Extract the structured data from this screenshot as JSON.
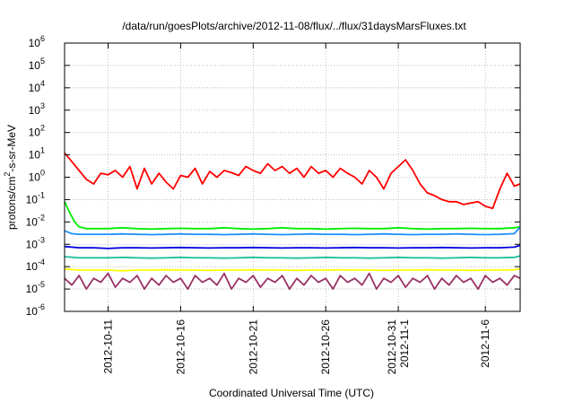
{
  "chart_data": {
    "type": "line",
    "title": "/data/run/goesPlots/archive/2012-11-08/flux/../flux/31daysMarsFluxes.txt",
    "xlabel": "Coordinated Universal Time (UTC)",
    "ylabel": "protons/cm²-s-sr-MeV",
    "ylabel_parts": {
      "pre": "protons/cm",
      "sup": "2",
      "post": "-s-sr-MeV"
    },
    "x_start": "2012-10-08",
    "xlim_days": [
      0,
      31.4
    ],
    "ylim": [
      1e-06,
      1000000.0
    ],
    "y_scale": "log",
    "grid": true,
    "x_ticks": [
      {
        "day": 3,
        "lines": [
          "2012-10-11"
        ]
      },
      {
        "day": 8,
        "lines": [
          "2012-10-16"
        ]
      },
      {
        "day": 13,
        "lines": [
          "2012-10-21"
        ]
      },
      {
        "day": 18,
        "lines": [
          "2012-10-26"
        ]
      },
      {
        "day": 23,
        "lines": [
          "2012-10-31",
          "2012-11-1"
        ]
      },
      {
        "day": 29,
        "lines": [
          "2012-11-6"
        ]
      }
    ],
    "y_ticks": [
      {
        "value": 1e-06,
        "base": "10",
        "exp": "-6"
      },
      {
        "value": 1e-05,
        "base": "10",
        "exp": "-5"
      },
      {
        "value": 0.0001,
        "base": "10",
        "exp": "-4"
      },
      {
        "value": 0.001,
        "base": "10",
        "exp": "-3"
      },
      {
        "value": 0.01,
        "base": "10",
        "exp": "-2"
      },
      {
        "value": 0.1,
        "base": "10",
        "exp": "-1"
      },
      {
        "value": 1,
        "base": "10",
        "exp": "0"
      },
      {
        "value": 10,
        "base": "10",
        "exp": "1"
      },
      {
        "value": 100,
        "base": "10",
        "exp": "2"
      },
      {
        "value": 1000.0,
        "base": "10",
        "exp": "3"
      },
      {
        "value": 10000.0,
        "base": "10",
        "exp": "4"
      },
      {
        "value": 100000.0,
        "base": "10",
        "exp": "5"
      },
      {
        "value": 1000000.0,
        "base": "10",
        "exp": "6"
      }
    ],
    "series": [
      {
        "color": "#ff0000",
        "x": [
          0,
          0.5,
          1,
          1.5,
          2,
          2.5,
          3,
          3.5,
          4,
          4.5,
          5,
          5.5,
          6,
          6.5,
          7,
          7.5,
          8,
          8.5,
          9,
          9.5,
          10,
          10.5,
          11,
          11.5,
          12,
          12.5,
          13,
          13.5,
          14,
          14.5,
          15,
          15.5,
          16,
          16.5,
          17,
          17.5,
          18,
          18.5,
          19,
          19.5,
          20,
          20.5,
          21,
          21.5,
          22,
          22.5,
          23,
          23.5,
          24,
          24.5,
          25,
          25.5,
          26,
          26.5,
          27,
          27.5,
          28,
          28.5,
          29,
          29.5,
          30,
          30.5,
          31,
          31.4
        ],
        "values": [
          12,
          5,
          2,
          0.8,
          0.5,
          1.5,
          1.3,
          2,
          1,
          3,
          0.3,
          2.5,
          0.5,
          1.5,
          0.6,
          0.3,
          1.2,
          1,
          2.5,
          0.5,
          1.8,
          1,
          2,
          1.6,
          1.2,
          3,
          2,
          1.5,
          4,
          2,
          3,
          1.5,
          2.5,
          1,
          3,
          1.5,
          2,
          1,
          2.5,
          1.5,
          1,
          0.5,
          2,
          1,
          0.3,
          1.5,
          3,
          6,
          2,
          0.5,
          0.2,
          0.15,
          0.1,
          0.08,
          0.08,
          0.06,
          0.07,
          0.08,
          0.05,
          0.04,
          0.3,
          1.5,
          0.4,
          0.5
        ]
      },
      {
        "color": "#00ee00",
        "x": [
          0,
          0.3,
          0.7,
          1,
          1.5,
          2,
          3,
          4,
          5,
          6,
          7,
          8,
          9,
          10,
          11,
          12,
          13,
          14,
          15,
          16,
          17,
          18,
          19,
          20,
          21,
          22,
          23,
          24,
          25,
          26,
          27,
          28,
          29,
          30,
          31,
          31.4
        ],
        "values": [
          0.08,
          0.03,
          0.01,
          0.006,
          0.005,
          0.005,
          0.005,
          0.0055,
          0.005,
          0.0048,
          0.005,
          0.0052,
          0.005,
          0.005,
          0.0055,
          0.005,
          0.0048,
          0.005,
          0.0055,
          0.005,
          0.005,
          0.0048,
          0.005,
          0.0052,
          0.005,
          0.005,
          0.0055,
          0.005,
          0.0048,
          0.005,
          0.005,
          0.0052,
          0.005,
          0.005,
          0.0055,
          0.006
        ]
      },
      {
        "color": "#1e90ff",
        "x": [
          0,
          0.5,
          1,
          2,
          3,
          4,
          5,
          6,
          7,
          8,
          9,
          10,
          11,
          12,
          13,
          14,
          15,
          16,
          17,
          18,
          19,
          20,
          21,
          22,
          23,
          24,
          25,
          26,
          27,
          28,
          29,
          30,
          31,
          31.4
        ],
        "values": [
          0.004,
          0.003,
          0.0028,
          0.0028,
          0.0028,
          0.0029,
          0.0028,
          0.0027,
          0.0028,
          0.0029,
          0.0028,
          0.0028,
          0.0027,
          0.0028,
          0.0029,
          0.0028,
          0.0027,
          0.0028,
          0.0029,
          0.0028,
          0.0028,
          0.0027,
          0.0028,
          0.0029,
          0.0028,
          0.0027,
          0.0028,
          0.0028,
          0.0029,
          0.0028,
          0.0027,
          0.0028,
          0.003,
          0.006
        ]
      },
      {
        "color": "#0000dd",
        "x": [
          0,
          1,
          2,
          3,
          4,
          5,
          6,
          7,
          8,
          9,
          10,
          11,
          12,
          13,
          14,
          15,
          16,
          17,
          18,
          19,
          20,
          21,
          22,
          23,
          24,
          25,
          26,
          27,
          28,
          29,
          30,
          31,
          31.4
        ],
        "values": [
          0.0008,
          0.0007,
          0.0007,
          0.00065,
          0.0007,
          0.0007,
          0.00068,
          0.0007,
          0.00072,
          0.0007,
          0.00068,
          0.0007,
          0.0007,
          0.00072,
          0.0007,
          0.00068,
          0.0007,
          0.0007,
          0.00068,
          0.0007,
          0.00072,
          0.0007,
          0.0007,
          0.00068,
          0.0007,
          0.0007,
          0.00072,
          0.0007,
          0.00068,
          0.0007,
          0.0007,
          0.00075,
          0.0009
        ]
      },
      {
        "color": "#20c0a0",
        "x": [
          0,
          1,
          2,
          3,
          4,
          5,
          6,
          7,
          8,
          9,
          10,
          11,
          12,
          13,
          14,
          15,
          16,
          17,
          18,
          19,
          20,
          21,
          22,
          23,
          24,
          25,
          26,
          27,
          28,
          29,
          30,
          31,
          31.4
        ],
        "values": [
          0.00028,
          0.00025,
          0.00025,
          0.00025,
          0.00026,
          0.00025,
          0.00024,
          0.00025,
          0.00026,
          0.00025,
          0.00025,
          0.00024,
          0.00025,
          0.00026,
          0.00025,
          0.00025,
          0.00024,
          0.00025,
          0.00026,
          0.00025,
          0.00025,
          0.00024,
          0.00025,
          0.00026,
          0.00025,
          0.00025,
          0.00024,
          0.00025,
          0.00026,
          0.00025,
          0.00025,
          0.00026,
          0.0003
        ]
      },
      {
        "color": "#ffff00",
        "x": [
          0,
          1,
          2,
          3,
          4,
          5,
          6,
          7,
          8,
          9,
          10,
          11,
          12,
          13,
          14,
          15,
          16,
          17,
          18,
          19,
          20,
          21,
          22,
          23,
          24,
          25,
          26,
          27,
          28,
          29,
          30,
          31,
          31.4
        ],
        "values": [
          8e-05,
          7e-05,
          7e-05,
          7e-05,
          6.5e-05,
          7e-05,
          7e-05,
          7.2e-05,
          7e-05,
          7e-05,
          6.8e-05,
          7e-05,
          7e-05,
          7.2e-05,
          7e-05,
          7e-05,
          6.8e-05,
          7e-05,
          7e-05,
          7.2e-05,
          7e-05,
          7e-05,
          6.8e-05,
          7e-05,
          7e-05,
          7.2e-05,
          7e-05,
          7e-05,
          6.8e-05,
          7e-05,
          7e-05,
          7.2e-05,
          8e-05
        ]
      },
      {
        "color": "#993366",
        "x": [
          0,
          0.5,
          1,
          1.5,
          2,
          2.5,
          3,
          3.5,
          4,
          4.5,
          5,
          5.5,
          6,
          6.5,
          7,
          7.5,
          8,
          8.5,
          9,
          9.5,
          10,
          10.5,
          11,
          11.5,
          12,
          12.5,
          13,
          13.5,
          14,
          14.5,
          15,
          15.5,
          16,
          16.5,
          17,
          17.5,
          18,
          18.5,
          19,
          19.5,
          20,
          20.5,
          21,
          21.5,
          22,
          22.5,
          23,
          23.5,
          24,
          24.5,
          25,
          25.5,
          26,
          26.5,
          27,
          27.5,
          28,
          28.5,
          29,
          29.5,
          30,
          30.5,
          31,
          31.4
        ],
        "values": [
          3e-05,
          1.5e-05,
          4e-05,
          1e-05,
          3e-05,
          2e-05,
          5e-05,
          1.2e-05,
          3e-05,
          2e-05,
          4e-05,
          1e-05,
          3e-05,
          1.5e-05,
          4e-05,
          2e-05,
          3e-05,
          1e-05,
          4e-05,
          2e-05,
          3e-05,
          1.5e-05,
          5e-05,
          1e-05,
          3e-05,
          2e-05,
          4e-05,
          1.2e-05,
          3e-05,
          2e-05,
          4e-05,
          1e-05,
          3e-05,
          1.5e-05,
          4e-05,
          2e-05,
          3e-05,
          1e-05,
          4e-05,
          2e-05,
          3e-05,
          1.5e-05,
          5e-05,
          1e-05,
          3e-05,
          2e-05,
          4e-05,
          1.2e-05,
          3e-05,
          2e-05,
          4e-05,
          1e-05,
          3e-05,
          1.5e-05,
          4e-05,
          2e-05,
          3e-05,
          1e-05,
          4e-05,
          2e-05,
          3e-05,
          1.5e-05,
          4e-05,
          3e-05
        ]
      }
    ]
  }
}
